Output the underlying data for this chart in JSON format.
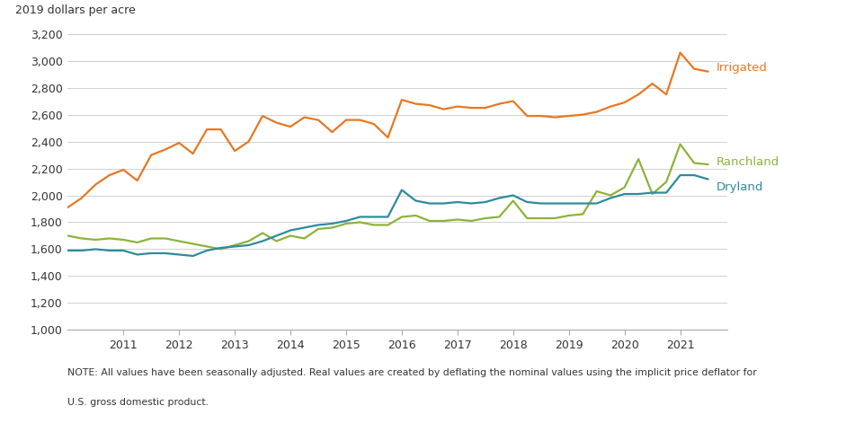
{
  "ylabel": "2019 dollars per acre",
  "ylim": [
    1000,
    3200
  ],
  "yticks": [
    1000,
    1200,
    1400,
    1600,
    1800,
    2000,
    2200,
    2400,
    2600,
    2800,
    3000,
    3200
  ],
  "note_line1": "NOTE: All values have been seasonally adjusted. Real values are created by deflating the nominal values using the implicit price deflator for",
  "note_line2": "U.S. gross domestic product.",
  "colors": {
    "irrigated": "#E87722",
    "ranchland": "#8DB33A",
    "dryland": "#2E8B9A"
  },
  "xlim_left": 2010.0,
  "xlim_right": 2021.85,
  "xticks": [
    2011,
    2012,
    2013,
    2014,
    2015,
    2016,
    2017,
    2018,
    2019,
    2020,
    2021
  ],
  "series": {
    "irrigated": {
      "label": "Irrigated",
      "x": [
        2010.0,
        2010.25,
        2010.5,
        2010.75,
        2011.0,
        2011.25,
        2011.5,
        2011.75,
        2012.0,
        2012.25,
        2012.5,
        2012.75,
        2013.0,
        2013.25,
        2013.5,
        2013.75,
        2014.0,
        2014.25,
        2014.5,
        2014.75,
        2015.0,
        2015.25,
        2015.5,
        2015.75,
        2016.0,
        2016.25,
        2016.5,
        2016.75,
        2017.0,
        2017.25,
        2017.5,
        2017.75,
        2018.0,
        2018.25,
        2018.5,
        2018.75,
        2019.0,
        2019.25,
        2019.5,
        2019.75,
        2020.0,
        2020.25,
        2020.5,
        2020.75,
        2021.0,
        2021.25,
        2021.5
      ],
      "y": [
        1910,
        1980,
        2080,
        2150,
        2190,
        2110,
        2300,
        2340,
        2390,
        2310,
        2490,
        2490,
        2330,
        2400,
        2590,
        2540,
        2510,
        2580,
        2560,
        2470,
        2560,
        2560,
        2530,
        2430,
        2710,
        2680,
        2670,
        2640,
        2660,
        2650,
        2650,
        2680,
        2700,
        2590,
        2590,
        2580,
        2590,
        2600,
        2620,
        2660,
        2690,
        2750,
        2830,
        2750,
        3060,
        2940,
        2920
      ]
    },
    "ranchland": {
      "label": "Ranchland",
      "x": [
        2010.0,
        2010.25,
        2010.5,
        2010.75,
        2011.0,
        2011.25,
        2011.5,
        2011.75,
        2012.0,
        2012.25,
        2012.5,
        2012.75,
        2013.0,
        2013.25,
        2013.5,
        2013.75,
        2014.0,
        2014.25,
        2014.5,
        2014.75,
        2015.0,
        2015.25,
        2015.5,
        2015.75,
        2016.0,
        2016.25,
        2016.5,
        2016.75,
        2017.0,
        2017.25,
        2017.5,
        2017.75,
        2018.0,
        2018.25,
        2018.5,
        2018.75,
        2019.0,
        2019.25,
        2019.5,
        2019.75,
        2020.0,
        2020.25,
        2020.5,
        2020.75,
        2021.0,
        2021.25,
        2021.5
      ],
      "y": [
        1700,
        1680,
        1670,
        1680,
        1670,
        1650,
        1680,
        1680,
        1660,
        1640,
        1620,
        1600,
        1630,
        1660,
        1720,
        1660,
        1700,
        1680,
        1750,
        1760,
        1790,
        1800,
        1780,
        1780,
        1840,
        1850,
        1810,
        1810,
        1820,
        1810,
        1830,
        1840,
        1960,
        1830,
        1830,
        1830,
        1850,
        1860,
        2030,
        2000,
        2060,
        2270,
        2010,
        2100,
        2380,
        2240,
        2230
      ]
    },
    "dryland": {
      "label": "Dryland",
      "x": [
        2010.0,
        2010.25,
        2010.5,
        2010.75,
        2011.0,
        2011.25,
        2011.5,
        2011.75,
        2012.0,
        2012.25,
        2012.5,
        2012.75,
        2013.0,
        2013.25,
        2013.5,
        2013.75,
        2014.0,
        2014.25,
        2014.5,
        2014.75,
        2015.0,
        2015.25,
        2015.5,
        2015.75,
        2016.0,
        2016.25,
        2016.5,
        2016.75,
        2017.0,
        2017.25,
        2017.5,
        2017.75,
        2018.0,
        2018.25,
        2018.5,
        2018.75,
        2019.0,
        2019.25,
        2019.5,
        2019.75,
        2020.0,
        2020.25,
        2020.5,
        2020.75,
        2021.0,
        2021.25,
        2021.5
      ],
      "y": [
        1590,
        1590,
        1600,
        1590,
        1590,
        1560,
        1570,
        1570,
        1560,
        1550,
        1590,
        1610,
        1620,
        1630,
        1660,
        1700,
        1740,
        1760,
        1780,
        1790,
        1810,
        1840,
        1840,
        1840,
        2040,
        1960,
        1940,
        1940,
        1950,
        1940,
        1950,
        1980,
        2000,
        1950,
        1940,
        1940,
        1940,
        1940,
        1940,
        1980,
        2010,
        2010,
        2020,
        2020,
        2150,
        2150,
        2120
      ]
    }
  }
}
